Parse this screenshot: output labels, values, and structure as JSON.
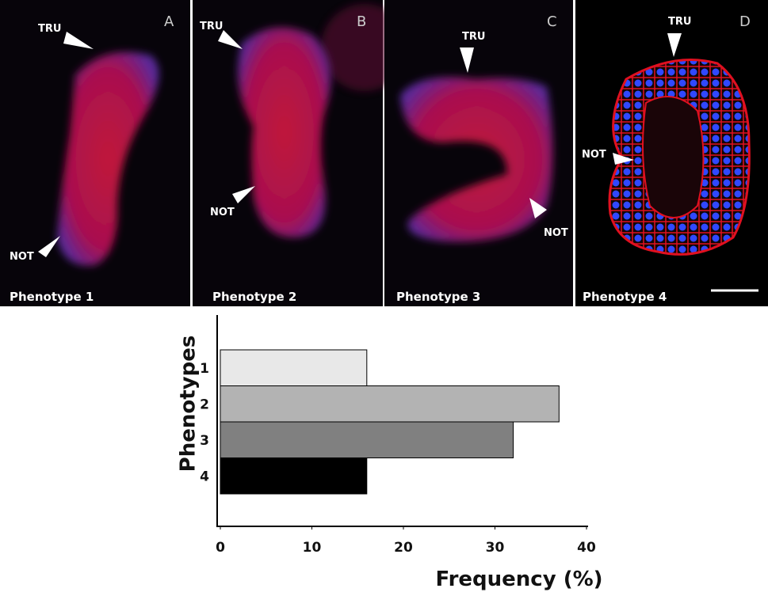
{
  "panels": [
    {
      "letter": "A",
      "label": "Phenotype 1",
      "top_marker": "TRU",
      "bottom_marker": "NOT"
    },
    {
      "letter": "B",
      "label": "Phenotype 2",
      "top_marker": "TRU",
      "bottom_marker": "NOT"
    },
    {
      "letter": "C",
      "label": "Phenotype 3",
      "top_marker": "TRU",
      "bottom_marker": "NOT"
    },
    {
      "letter": "D",
      "label": "Phenotype 4",
      "top_marker": "TRU",
      "bottom_marker": "NOT"
    }
  ],
  "chart_data": {
    "type": "barh",
    "categories": [
      "1",
      "2",
      "3",
      "4"
    ],
    "values": [
      16,
      37,
      32,
      16
    ],
    "colors": [
      "#e8e8e8",
      "#b3b3b3",
      "#808080",
      "#000000"
    ],
    "xlim": [
      0,
      40
    ],
    "xticks": [
      0,
      10,
      20,
      30,
      40
    ],
    "xlabel": "Frequency (%)",
    "ylabel": "Phenotypes"
  }
}
